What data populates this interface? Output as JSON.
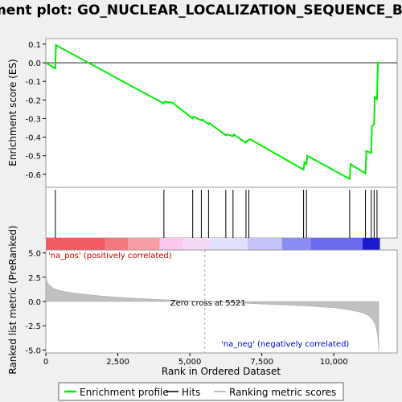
{
  "chart_data": {
    "type": "line",
    "title": "Enrichment plot: GO_NUCLEAR_LOCALIZATION_SEQUENCE_BINDING",
    "xlabel": "Rank in Ordered Dataset",
    "top_panel": {
      "ylabel": "Enrichment score (ES)",
      "ylim": [
        -0.67,
        0.13
      ],
      "yticks": [
        0.1,
        0.0,
        -0.1,
        -0.2,
        -0.3,
        -0.4,
        -0.5,
        -0.6
      ],
      "ytick_labels": [
        "0.1",
        "0.0",
        "-0.1",
        "-0.2",
        "-0.3",
        "-0.4",
        "-0.5",
        "-0.6"
      ],
      "series": [
        {
          "name": "Enrichment profile",
          "color": "#00ee00",
          "x": [
            0,
            330,
            350,
            4100,
            4130,
            4400,
            5100,
            5130,
            5400,
            5430,
            5650,
            5680,
            6250,
            6280,
            6400,
            6500,
            6530,
            6650,
            6950,
            6980,
            7050,
            7080,
            8950,
            8980,
            9050,
            9080,
            10550,
            10580,
            11100,
            11130,
            11300,
            11320,
            11400,
            11420,
            11500,
            11530,
            11600
          ],
          "y": [
            0.0,
            -0.03,
            0.095,
            -0.22,
            -0.21,
            -0.215,
            -0.3,
            -0.29,
            -0.31,
            -0.305,
            -0.33,
            -0.325,
            -0.39,
            -0.385,
            -0.39,
            -0.395,
            -0.385,
            -0.4,
            -0.43,
            -0.42,
            -0.415,
            -0.41,
            -0.575,
            -0.535,
            -0.545,
            -0.5,
            -0.625,
            -0.545,
            -0.595,
            -0.475,
            -0.485,
            -0.34,
            -0.33,
            -0.185,
            -0.195,
            0.0,
            0.0
          ]
        }
      ]
    },
    "hits_panel": {
      "hits": [
        330,
        4100,
        5100,
        5400,
        5650,
        6250,
        6500,
        6950,
        7050,
        8950,
        9050,
        10550,
        11100,
        11300,
        11400,
        11500
      ],
      "heat_segments": [
        {
          "start": 0,
          "end": 2050,
          "color": "#f05a60"
        },
        {
          "start": 2050,
          "end": 2850,
          "color": "#f47880"
        },
        {
          "start": 2850,
          "end": 3950,
          "color": "#f89fa5"
        },
        {
          "start": 3950,
          "end": 4750,
          "color": "#fbc7ee"
        },
        {
          "start": 4750,
          "end": 5700,
          "color": "#f5d8f5"
        },
        {
          "start": 5700,
          "end": 7000,
          "color": "#e0e0fb"
        },
        {
          "start": 7000,
          "end": 8200,
          "color": "#c4c4f8"
        },
        {
          "start": 8200,
          "end": 9200,
          "color": "#8c8cf2"
        },
        {
          "start": 9200,
          "end": 11000,
          "color": "#6a6aee"
        },
        {
          "start": 11000,
          "end": 11600,
          "color": "#1a1ad0"
        }
      ]
    },
    "metric_panel": {
      "ylabel": "Ranked list metric (PreRanked)",
      "ylim": [
        -5.3,
        5.3
      ],
      "yticks": [
        5.0,
        2.5,
        0.0,
        -2.5,
        -5.0
      ],
      "ytick_labels": [
        "5.0",
        "2.5",
        "0.0",
        "-2.5",
        "-5.0"
      ],
      "x": [
        0,
        50,
        150,
        300,
        600,
        1000,
        2000,
        3000,
        4000,
        5000,
        5521,
        6000,
        7000,
        8000,
        9000,
        10000,
        10500,
        11000,
        11200,
        11350,
        11450,
        11520,
        11560
      ],
      "y": [
        2.6,
        2.0,
        1.6,
        1.3,
        1.05,
        0.85,
        0.55,
        0.35,
        0.2,
        0.07,
        0.0,
        -0.07,
        -0.2,
        -0.32,
        -0.45,
        -0.65,
        -0.85,
        -1.15,
        -1.45,
        -1.9,
        -2.4,
        -3.5,
        -5.0
      ],
      "zero_cross_label": "Zero cross at 5521",
      "zero_cross_x": 5521,
      "pos_label": "'na_pos' (positively correlated)",
      "neg_label": "'na_neg' (negatively correlated)"
    },
    "xlim": [
      0,
      12200
    ],
    "xticks": [
      0,
      2500,
      5000,
      7500,
      10000
    ],
    "xtick_labels": [
      "0",
      "2,500",
      "5,000",
      "7,500",
      "10,000"
    ],
    "legend": {
      "placement": "bottom",
      "entries": [
        {
          "label": "Enrichment profile",
          "color": "#00ee00"
        },
        {
          "label": "Hits",
          "color": "#000000"
        },
        {
          "label": "Ranking metric scores",
          "color": "#c0c0c0"
        }
      ]
    }
  }
}
